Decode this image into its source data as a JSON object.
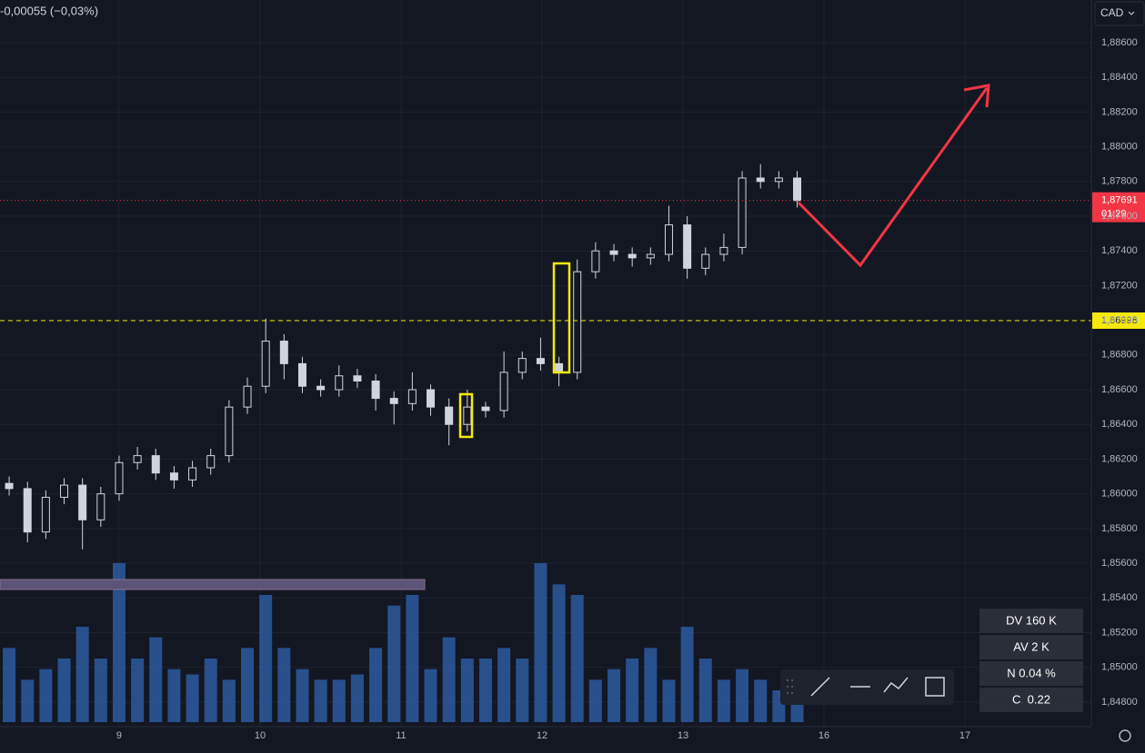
{
  "header": {
    "change": "-0,00055 (−0,03%)",
    "currency": "CAD"
  },
  "chart_data": {
    "type": "candlestick",
    "x": [
      8.22,
      8.35,
      8.48,
      8.61,
      8.74,
      8.87,
      9,
      9.13,
      9.26,
      9.39,
      9.52,
      9.65,
      9.78,
      9.91,
      10.04,
      10.17,
      10.3,
      10.43,
      10.56,
      10.69,
      10.82,
      10.95,
      11.08,
      11.21,
      11.34,
      11.47,
      11.6,
      11.73,
      11.86,
      11.99,
      12.12,
      12.25,
      12.38,
      12.51,
      12.64,
      12.77,
      12.9,
      13.03,
      13.16,
      13.29,
      13.42,
      13.55,
      13.68,
      13.81
    ],
    "open": [
      1.8606,
      1.8603,
      1.8578,
      1.8598,
      1.8605,
      1.8585,
      1.86,
      1.8618,
      1.8622,
      1.8612,
      1.8608,
      1.8615,
      1.8622,
      1.865,
      1.8662,
      1.8688,
      1.8675,
      1.8662,
      1.866,
      1.8668,
      1.8665,
      1.8655,
      1.8652,
      1.866,
      1.865,
      1.864,
      1.865,
      1.8648,
      1.867,
      1.8678,
      1.8675,
      1.867,
      1.8728,
      1.874,
      1.8738,
      1.8736,
      1.8738,
      1.8755,
      1.873,
      1.8738,
      1.8742,
      1.8782,
      1.878,
      1.8782
    ],
    "high": [
      1.861,
      1.8607,
      1.8602,
      1.8609,
      1.8609,
      1.8604,
      1.8622,
      1.8627,
      1.8626,
      1.8616,
      1.8619,
      1.8626,
      1.8654,
      1.8667,
      1.8701,
      1.8692,
      1.8679,
      1.8666,
      1.8674,
      1.8672,
      1.8669,
      1.8659,
      1.867,
      1.8663,
      1.8655,
      1.866,
      1.8653,
      1.8682,
      1.8682,
      1.869,
      1.8679,
      1.8735,
      1.8745,
      1.8744,
      1.8742,
      1.8742,
      1.8766,
      1.876,
      1.8742,
      1.875,
      1.8786,
      1.879,
      1.8786,
      1.8786
    ],
    "low": [
      1.8599,
      1.8572,
      1.8574,
      1.8594,
      1.8568,
      1.8581,
      1.8596,
      1.8614,
      1.8608,
      1.8603,
      1.8604,
      1.8611,
      1.8618,
      1.8646,
      1.8658,
      1.8666,
      1.8658,
      1.8656,
      1.8656,
      1.8661,
      1.8648,
      1.864,
      1.8648,
      1.8645,
      1.8628,
      1.8636,
      1.8644,
      1.8644,
      1.8666,
      1.8671,
      1.8662,
      1.8666,
      1.8724,
      1.8734,
      1.8731,
      1.8732,
      1.8734,
      1.8724,
      1.8726,
      1.8734,
      1.8738,
      1.8776,
      1.8776,
      1.8765
    ],
    "close": [
      1.8603,
      1.8578,
      1.8598,
      1.8605,
      1.8585,
      1.86,
      1.8618,
      1.8622,
      1.8612,
      1.8608,
      1.8615,
      1.8622,
      1.865,
      1.8662,
      1.8688,
      1.8675,
      1.8662,
      1.866,
      1.8668,
      1.8665,
      1.8655,
      1.8652,
      1.866,
      1.865,
      1.864,
      1.865,
      1.8648,
      1.867,
      1.8678,
      1.8675,
      1.867,
      1.8728,
      1.874,
      1.8738,
      1.8736,
      1.8738,
      1.8755,
      1.873,
      1.8738,
      1.8742,
      1.8782,
      1.878,
      1.8782,
      1.8769
    ],
    "volume": [
      70,
      40,
      50,
      60,
      90,
      60,
      150,
      60,
      80,
      50,
      45,
      60,
      40,
      70,
      120,
      70,
      50,
      40,
      40,
      45,
      70,
      110,
      120,
      50,
      80,
      60,
      60,
      70,
      60,
      150,
      130,
      120,
      40,
      50,
      60,
      70,
      40,
      90,
      60,
      40,
      50,
      40,
      30,
      40
    ],
    "xlim": [
      8.155,
      15.897
    ],
    "xticks": [
      9,
      10,
      11,
      12,
      13,
      {
        "value": 14,
        "label": "16"
      },
      {
        "value": 15,
        "label": "17"
      }
    ],
    "ylim": [
      1.84658,
      1.88846
    ],
    "yticks": [
      {
        "value": 1.886,
        "label": "1,88600"
      },
      {
        "value": 1.884,
        "label": "1,88400"
      },
      {
        "value": 1.882,
        "label": "1,88200"
      },
      {
        "value": 1.88,
        "label": "1,88000"
      },
      {
        "value": 1.878,
        "label": "1,87800"
      },
      {
        "value": 1.876,
        "label": "1,87600"
      },
      {
        "value": 1.874,
        "label": "1,87400"
      },
      {
        "value": 1.872,
        "label": "1,87200"
      },
      {
        "value": 1.87,
        "label": "1,87000"
      },
      {
        "value": 1.868,
        "label": "1,86800"
      },
      {
        "value": 1.866,
        "label": "1,86600"
      },
      {
        "value": 1.864,
        "label": "1,86400"
      },
      {
        "value": 1.862,
        "label": "1,86200"
      },
      {
        "value": 1.86,
        "label": "1,86000"
      },
      {
        "value": 1.858,
        "label": "1,85800"
      },
      {
        "value": 1.856,
        "label": "1,85600"
      },
      {
        "value": 1.854,
        "label": "1,85400"
      },
      {
        "value": 1.852,
        "label": "1,85200"
      },
      {
        "value": 1.85,
        "label": "1,85000"
      },
      {
        "value": 1.848,
        "label": "1,84800"
      }
    ],
    "hline": {
      "value": 1.86998,
      "label": "1,86998"
    },
    "last_price": {
      "value": 1.87691,
      "label": "1,87691",
      "countdown": "01:29"
    }
  },
  "stats": [
    "DV 160 K",
    "AV 2 K",
    "N 0.04 %",
    "C  0.22"
  ]
}
